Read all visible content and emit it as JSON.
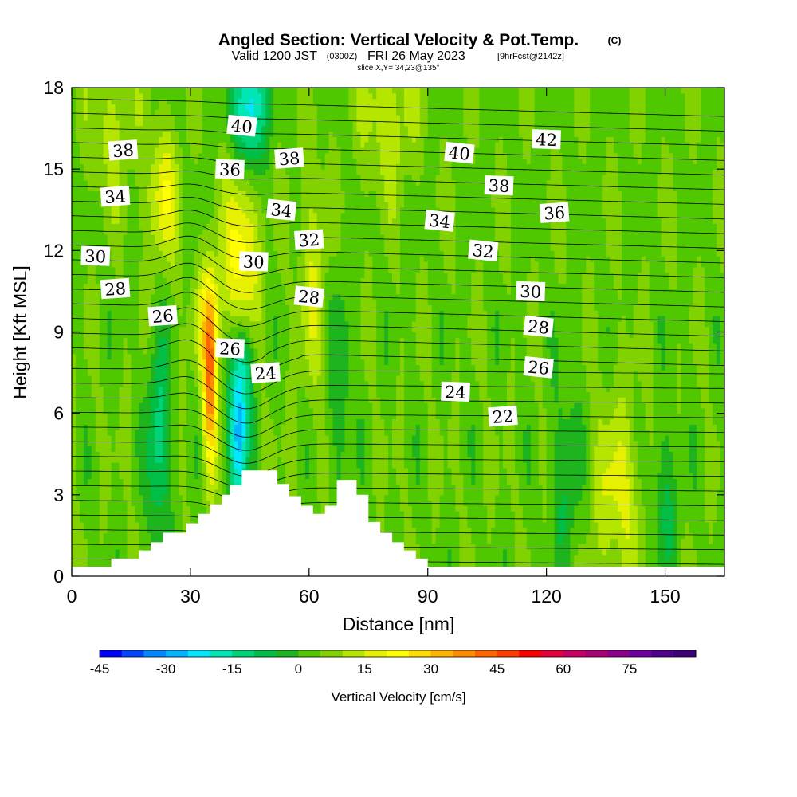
{
  "header": {
    "title": "Angled Section: Vertical Velocity & Pot.Temp.",
    "title_unit": "(C)",
    "valid_prefix": "Valid 1200 JST",
    "valid_utc": "(0300Z)",
    "valid_date": "FRI 26 May 2023",
    "forecast": "[9hrFcst@2142z]",
    "slice": "slice X,Y= 34,23@135°"
  },
  "chart_data": {
    "type": "heatmap",
    "xlabel": "Distance [nm]",
    "ylabel": "Height [Kft MSL]",
    "xlim": [
      0,
      165
    ],
    "ylim": [
      0,
      18
    ],
    "x_ticks": [
      0,
      30,
      60,
      90,
      120,
      150
    ],
    "y_ticks": [
      0,
      3,
      6,
      9,
      12,
      15,
      18
    ],
    "colorbar": {
      "label": "Vertical Velocity [cm/s]",
      "min": -45,
      "max": 90,
      "step": 5,
      "tick_values": [
        -45,
        -30,
        -15,
        0,
        15,
        30,
        45,
        60,
        75
      ],
      "colors": [
        "#0000ff",
        "#0046ff",
        "#0088ff",
        "#00b4ff",
        "#00e6ff",
        "#00e6b4",
        "#00d278",
        "#00be46",
        "#1eb41e",
        "#50c800",
        "#82d200",
        "#b4e600",
        "#e6f000",
        "#ffff00",
        "#ffdc00",
        "#ffb400",
        "#ff8c00",
        "#ff6400",
        "#ff3c00",
        "#ff0000",
        "#e6003c",
        "#c80064",
        "#aa0078",
        "#8c008c",
        "#6e00a0",
        "#50008c",
        "#3c0078"
      ]
    },
    "theta_labels": [
      {
        "x": 13,
        "y": 15.7,
        "v": "38"
      },
      {
        "x": 43,
        "y": 16.6,
        "v": "40"
      },
      {
        "x": 40,
        "y": 15.0,
        "v": "36"
      },
      {
        "x": 55,
        "y": 15.4,
        "v": "38"
      },
      {
        "x": 98,
        "y": 15.6,
        "v": "40"
      },
      {
        "x": 120,
        "y": 16.1,
        "v": "42"
      },
      {
        "x": 11,
        "y": 14.0,
        "v": "34"
      },
      {
        "x": 53,
        "y": 13.5,
        "v": "34"
      },
      {
        "x": 108,
        "y": 14.4,
        "v": "38"
      },
      {
        "x": 122,
        "y": 13.4,
        "v": "36"
      },
      {
        "x": 93,
        "y": 13.1,
        "v": "34"
      },
      {
        "x": 6,
        "y": 11.8,
        "v": "30"
      },
      {
        "x": 60,
        "y": 12.4,
        "v": "32"
      },
      {
        "x": 104,
        "y": 12.0,
        "v": "32"
      },
      {
        "x": 46,
        "y": 11.6,
        "v": "30"
      },
      {
        "x": 11,
        "y": 10.6,
        "v": "28"
      },
      {
        "x": 60,
        "y": 10.3,
        "v": "28"
      },
      {
        "x": 116,
        "y": 10.5,
        "v": "30"
      },
      {
        "x": 23,
        "y": 9.6,
        "v": "26"
      },
      {
        "x": 118,
        "y": 9.2,
        "v": "28"
      },
      {
        "x": 40,
        "y": 8.4,
        "v": "26"
      },
      {
        "x": 49,
        "y": 7.5,
        "v": "24"
      },
      {
        "x": 118,
        "y": 7.7,
        "v": "26"
      },
      {
        "x": 97,
        "y": 6.8,
        "v": "24"
      },
      {
        "x": 109,
        "y": 5.9,
        "v": "22"
      }
    ],
    "terrain": [
      [
        0,
        0.35
      ],
      [
        10,
        0.35
      ],
      [
        10,
        0.65
      ],
      [
        17,
        0.65
      ],
      [
        17,
        0.95
      ],
      [
        20,
        0.95
      ],
      [
        20,
        1.25
      ],
      [
        23,
        1.25
      ],
      [
        23,
        1.6
      ],
      [
        29,
        1.6
      ],
      [
        29,
        1.95
      ],
      [
        32,
        1.95
      ],
      [
        32,
        2.3
      ],
      [
        35,
        2.3
      ],
      [
        35,
        2.65
      ],
      [
        38,
        2.65
      ],
      [
        38,
        3.0
      ],
      [
        40,
        3.0
      ],
      [
        40,
        3.35
      ],
      [
        43,
        3.35
      ],
      [
        43,
        3.9
      ],
      [
        52,
        3.9
      ],
      [
        52,
        3.4
      ],
      [
        55,
        3.4
      ],
      [
        55,
        2.95
      ],
      [
        58,
        2.95
      ],
      [
        58,
        2.6
      ],
      [
        61,
        2.6
      ],
      [
        61,
        2.3
      ],
      [
        64,
        2.3
      ],
      [
        64,
        2.6
      ],
      [
        67,
        2.6
      ],
      [
        67,
        3.55
      ],
      [
        72,
        3.55
      ],
      [
        72,
        3.0
      ],
      [
        75,
        3.0
      ],
      [
        75,
        2.0
      ],
      [
        78,
        2.0
      ],
      [
        78,
        1.6
      ],
      [
        81,
        1.6
      ],
      [
        81,
        1.25
      ],
      [
        84,
        1.25
      ],
      [
        84,
        0.95
      ],
      [
        87,
        0.95
      ],
      [
        87,
        0.65
      ],
      [
        90,
        0.65
      ],
      [
        90,
        0.35
      ],
      [
        165,
        0.35
      ]
    ],
    "velocity_features": [
      {
        "x": 35,
        "y": 7.0,
        "w": 33,
        "sx": 1.3,
        "sy": 2.2
      },
      {
        "x": 35,
        "y": 9.5,
        "w": 15,
        "sx": 2.5,
        "sy": 1.5
      },
      {
        "x": 43,
        "y": 12,
        "w": 20,
        "sx": 3.0,
        "sy": 2.2
      },
      {
        "x": 23,
        "y": 14,
        "w": 14,
        "sx": 3.0,
        "sy": 1.8
      },
      {
        "x": 42,
        "y": 5.0,
        "w": -32,
        "sx": 1.7,
        "sy": 1.8
      },
      {
        "x": 43,
        "y": 7.8,
        "w": -16,
        "sx": 2.4,
        "sy": 1.2
      },
      {
        "x": 45,
        "y": 17.3,
        "w": -30,
        "sx": 2.8,
        "sy": 1.6
      },
      {
        "x": 22,
        "y": 5.0,
        "w": -18,
        "sx": 2.0,
        "sy": 2.6
      },
      {
        "x": 61,
        "y": 11.0,
        "w": 10,
        "sx": 2.5,
        "sy": 3.0
      },
      {
        "x": 68,
        "y": 7.0,
        "w": -8,
        "sx": 2.0,
        "sy": 3.5
      },
      {
        "x": 138,
        "y": 3.0,
        "w": 12,
        "sx": 4.5,
        "sy": 2.5
      },
      {
        "x": 125,
        "y": 3.5,
        "w": -10,
        "sx": 2.5,
        "sy": 2.5
      },
      {
        "x": 150,
        "y": 2.8,
        "w": -10,
        "sx": 2.5,
        "sy": 2.0
      },
      {
        "x": 80,
        "y": 17.0,
        "w": 10,
        "sx": 5.0,
        "sy": 2.0
      },
      {
        "x": 10,
        "y": 16.5,
        "w": 8,
        "sx": 4.0,
        "sy": 2.0
      }
    ]
  }
}
